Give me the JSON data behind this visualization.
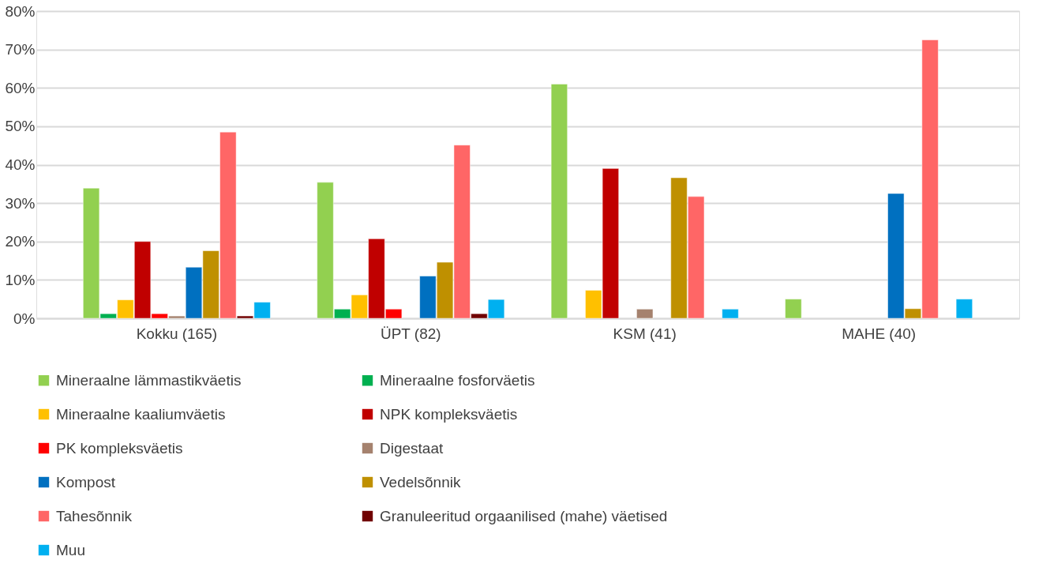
{
  "chart_data": {
    "type": "bar",
    "categories": [
      "Kokku (165)",
      "ÜPT (82)",
      "KSM (41)",
      "MAHE (40)"
    ],
    "series": [
      {
        "name": "Mineraalne lämmastikväetis",
        "color": "#92d050",
        "values": [
          33.9,
          35.4,
          61.0,
          5.0
        ]
      },
      {
        "name": "Mineraalne fosforväetis",
        "color": "#00b050",
        "values": [
          1.2,
          2.4,
          null,
          null
        ]
      },
      {
        "name": "Mineraalne kaaliumväetis",
        "color": "#ffc000",
        "values": [
          4.8,
          6.1,
          7.3,
          null
        ]
      },
      {
        "name": "NPK kompleksväetis",
        "color": "#c00000",
        "values": [
          20.0,
          20.7,
          39.0,
          null
        ]
      },
      {
        "name": "PK kompleksväetis",
        "color": "#ff0000",
        "values": [
          1.2,
          2.4,
          null,
          null
        ]
      },
      {
        "name": "Digestaat",
        "color": "#a5826e",
        "values": [
          0.6,
          null,
          2.4,
          null
        ]
      },
      {
        "name": "Kompost",
        "color": "#0070c0",
        "values": [
          13.3,
          11.0,
          null,
          32.5
        ]
      },
      {
        "name": "Vedelsõnnik",
        "color": "#bf9000",
        "values": [
          17.6,
          14.6,
          36.6,
          2.5
        ]
      },
      {
        "name": "Tahesõnnik",
        "color": "#ff6666",
        "values": [
          48.5,
          45.1,
          31.7,
          72.5
        ]
      },
      {
        "name": "Granuleeritud orgaanilised (mahe) väetised",
        "color": "#700000",
        "values": [
          0.6,
          1.2,
          null,
          null
        ]
      },
      {
        "name": "Muu",
        "color": "#00b0f0",
        "values": [
          4.2,
          4.9,
          2.4,
          5.0
        ]
      }
    ],
    "ylim": [
      0,
      80
    ],
    "yticks": [
      {
        "value": 0,
        "label": "0%"
      },
      {
        "value": 10,
        "label": "10%"
      },
      {
        "value": 20,
        "label": "20%"
      },
      {
        "value": 30,
        "label": "30%"
      },
      {
        "value": 40,
        "label": "40%"
      },
      {
        "value": 50,
        "label": "50%"
      },
      {
        "value": 60,
        "label": "60%"
      },
      {
        "value": 70,
        "label": "70%"
      },
      {
        "value": 80,
        "label": "80%"
      }
    ],
    "grid": "y",
    "legend": "bottom"
  }
}
